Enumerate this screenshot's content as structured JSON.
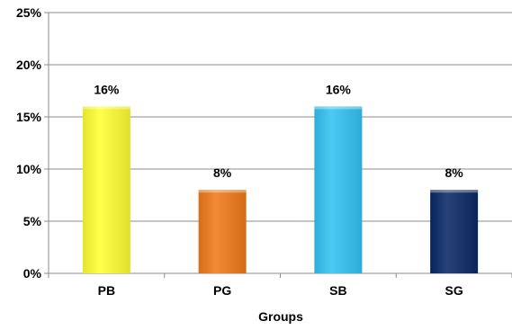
{
  "chart_data": {
    "type": "bar",
    "title": "",
    "xlabel": "Groups",
    "ylabel": "",
    "categories": [
      "PB",
      "PG",
      "SB",
      "SG"
    ],
    "values": [
      16,
      8,
      16,
      8
    ],
    "value_labels": [
      "16%",
      "8%",
      "16%",
      "8%"
    ],
    "bar_colors": [
      "#ffff33",
      "#f07a1a",
      "#33c3f2",
      "#0a2a66"
    ],
    "ylim": [
      0,
      25
    ],
    "yticks": [
      0,
      5,
      10,
      15,
      20,
      25
    ],
    "ytick_labels": [
      "0%",
      "5%",
      "10%",
      "15%",
      "20%",
      "25%"
    ],
    "grid": true,
    "legend": "none"
  }
}
